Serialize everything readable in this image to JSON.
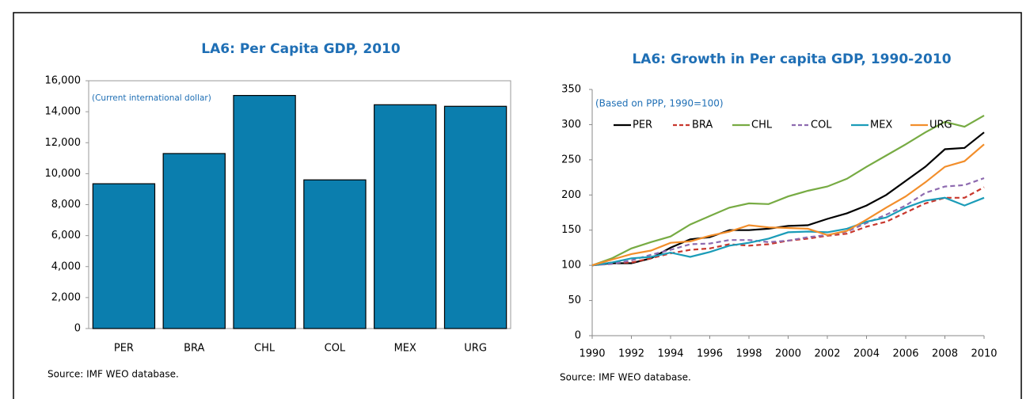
{
  "chart_data": [
    {
      "type": "bar",
      "title": "LA6: Per Capita GDP, 2010",
      "subtitle": "(Current international dollar)",
      "categories": [
        "PER",
        "BRA",
        "CHL",
        "COL",
        "MEX",
        "URG"
      ],
      "values": [
        9350,
        11300,
        15050,
        9600,
        14450,
        14350
      ],
      "color": "#0b7eae",
      "ylim": [
        0,
        16000
      ],
      "yticks": [
        0,
        {
          "value": 2000,
          "label": "2,000"
        },
        {
          "value": 4000,
          "label": "4,000"
        },
        {
          "value": 6000,
          "label": "6,000"
        },
        {
          "value": 8000,
          "label": "8,000"
        },
        {
          "value": 10000,
          "label": "10,000"
        },
        {
          "value": 12000,
          "label": "12,000"
        },
        {
          "value": 14000,
          "label": "14,000"
        },
        {
          "value": 16000,
          "label": "16,000"
        }
      ],
      "source": "Source: IMF WEO database."
    },
    {
      "type": "line",
      "title": "LA6: Growth in Per capita GDP, 1990-2010",
      "subtitle": "(Based on PPP, 1990=100)",
      "x": [
        1990,
        1991,
        1992,
        1993,
        1994,
        1995,
        1996,
        1997,
        1998,
        1999,
        2000,
        2001,
        2002,
        2003,
        2004,
        2005,
        2006,
        2007,
        2008,
        2009,
        2010
      ],
      "series": [
        {
          "name": "PER",
          "color": "#000000",
          "dash": false,
          "values": [
            100,
            103,
            103,
            110,
            125,
            137,
            140,
            150,
            150,
            152,
            156,
            157,
            166,
            174,
            185,
            200,
            220,
            240,
            265,
            267,
            289
          ]
        },
        {
          "name": "BRA",
          "color": "#c8372d",
          "dash": true,
          "values": [
            100,
            104,
            104,
            110,
            117,
            122,
            124,
            130,
            128,
            130,
            135,
            138,
            142,
            145,
            155,
            162,
            175,
            188,
            196,
            196,
            211
          ]
        },
        {
          "name": "CHL",
          "color": "#77ab43",
          "dash": false,
          "values": [
            100,
            110,
            124,
            133,
            141,
            158,
            170,
            182,
            188,
            187,
            198,
            206,
            212,
            223,
            240,
            256,
            272,
            289,
            304,
            297,
            313
          ]
        },
        {
          "name": "COL",
          "color": "#8e6bb0",
          "dash": true,
          "values": [
            100,
            102,
            107,
            115,
            122,
            130,
            131,
            136,
            136,
            133,
            135,
            140,
            143,
            148,
            160,
            172,
            185,
            203,
            212,
            214,
            224
          ]
        },
        {
          "name": "MEX",
          "color": "#1b9cb8",
          "dash": false,
          "values": [
            100,
            104,
            110,
            112,
            118,
            112,
            119,
            128,
            132,
            138,
            147,
            148,
            147,
            152,
            162,
            168,
            182,
            192,
            196,
            185,
            196
          ]
        },
        {
          "name": "URG",
          "color": "#f28e2b",
          "dash": false,
          "values": [
            100,
            108,
            116,
            121,
            132,
            134,
            142,
            148,
            157,
            154,
            153,
            152,
            143,
            149,
            165,
            182,
            198,
            218,
            240,
            248,
            272
          ]
        }
      ],
      "xlim": [
        1990,
        2010
      ],
      "xticks": [
        1990,
        1992,
        1994,
        1996,
        1998,
        2000,
        2002,
        2004,
        2006,
        2008,
        2010
      ],
      "ylim": [
        0,
        350
      ],
      "yticks": [
        0,
        50,
        100,
        150,
        200,
        250,
        300,
        350
      ],
      "source": "Source: IMF WEO database."
    }
  ]
}
